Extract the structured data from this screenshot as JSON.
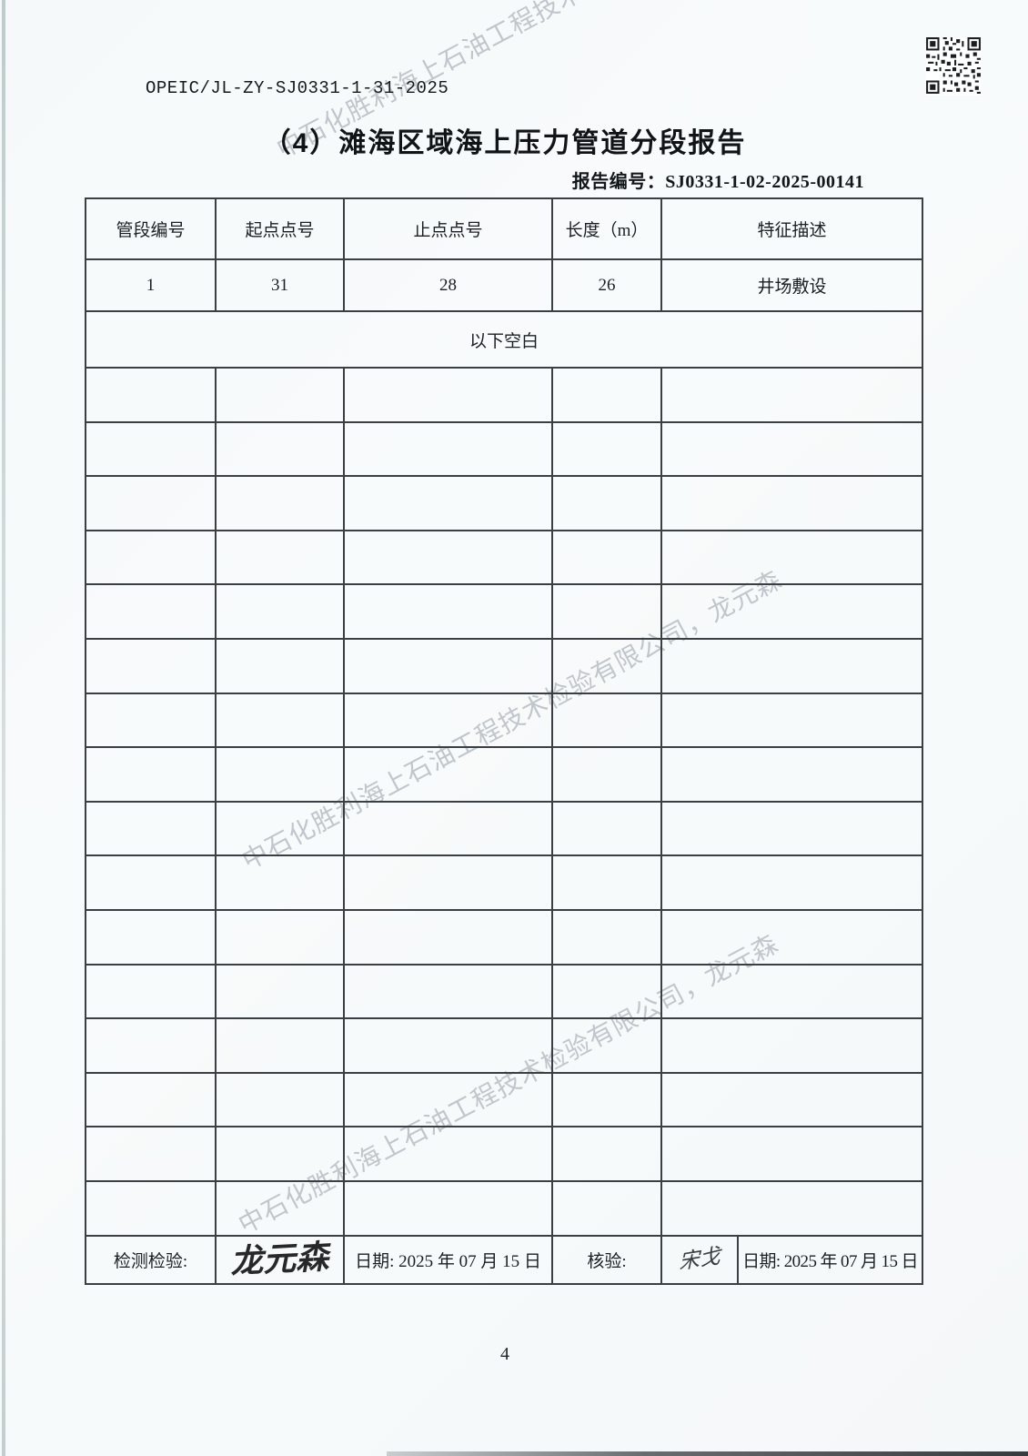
{
  "document": {
    "code": "OPEIC/JL-ZY-SJ0331-1-31-2025",
    "title": "（4）滩海区域海上压力管道分段报告",
    "report_no_label": "报告编号：",
    "report_no": "SJ0331-1-02-2025-00141",
    "page_number": "4"
  },
  "watermark": {
    "text": "中石化胜利海上石油工程技术检验有限公司，龙元森",
    "color": "#98a0ab"
  },
  "table": {
    "headers": [
      "管段编号",
      "起点点号",
      "止点点号",
      "长度（m）",
      "特征描述"
    ],
    "rows": [
      {
        "segment_no": "1",
        "start_point": "31",
        "end_point": "28",
        "length_m": "26",
        "feature": "井场敷设"
      }
    ],
    "blank_note": "以下空白",
    "empty_row_count": 16
  },
  "signoff": {
    "inspector_label": "检测检验:",
    "inspector_signature": "龙元森",
    "inspector_date": "日期: 2025 年 07 月 15 日",
    "reviewer_label": "核验:",
    "reviewer_signature": "宋戈",
    "reviewer_date": "日期: 2025 年 07 月 15 日"
  },
  "colors": {
    "table_border": "#3a3f43",
    "text": "#1b1f23",
    "qr": "#1c1f22"
  }
}
